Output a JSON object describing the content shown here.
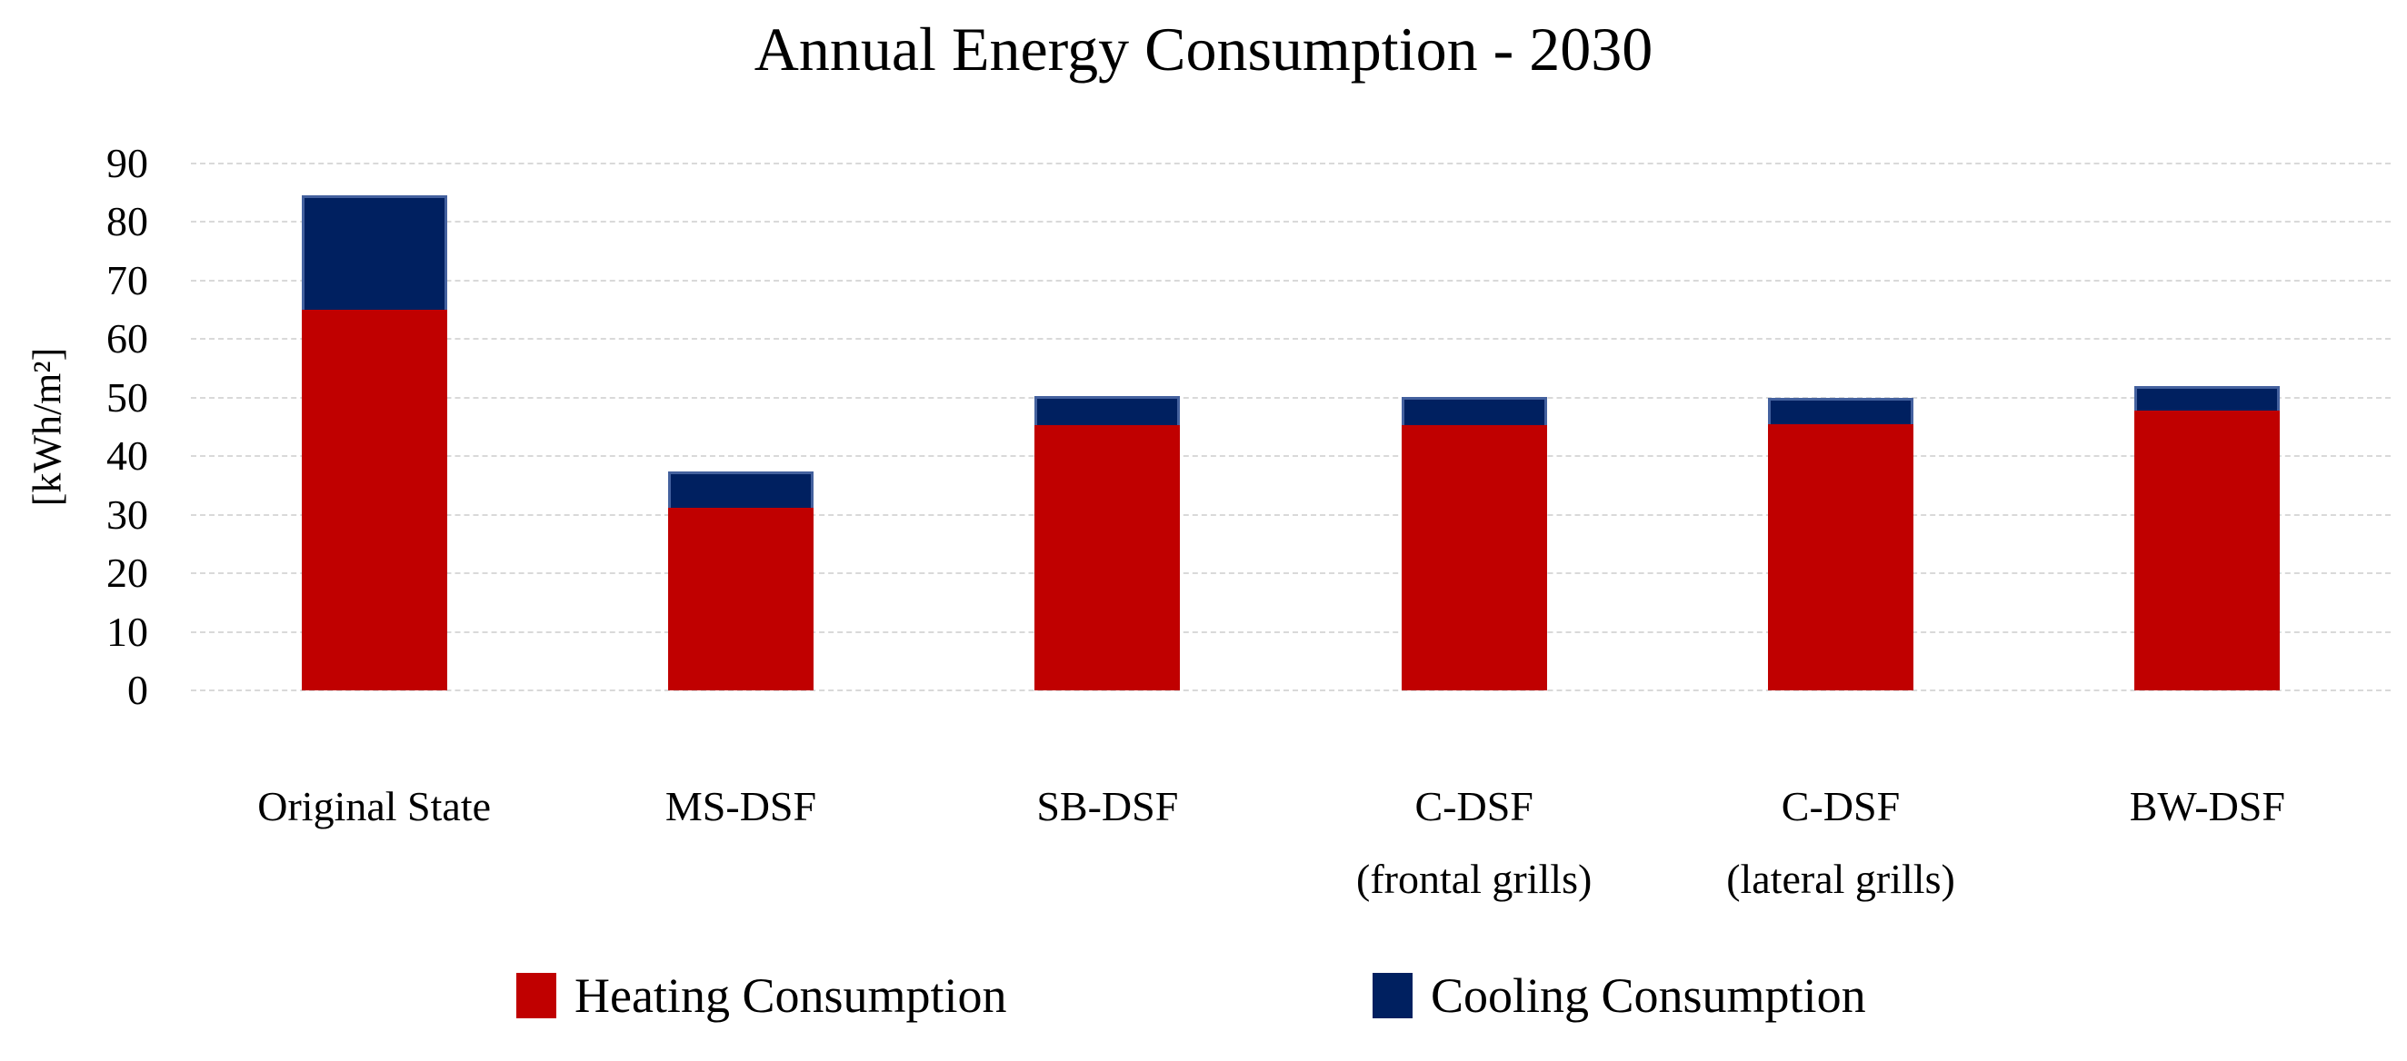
{
  "chart_data": {
    "type": "bar",
    "stacked": true,
    "title": "Annual Energy Consumption - 2030",
    "ylabel": "[kWh/m²]",
    "ylim": [
      0,
      90
    ],
    "ytick_step": 10,
    "grid": true,
    "gridline_color": "#D9D9D9",
    "legend_position": "bottom",
    "categories": [
      "Original State",
      "MS-DSF",
      "SB-DSF",
      "C-DSF\n(frontal grills)",
      "C-DSF\n(lateral grills)",
      "BW-DSF"
    ],
    "series": [
      {
        "name": "Heating Consumption",
        "color": "#C00000",
        "values": [
          65.0,
          31.2,
          45.3,
          45.3,
          45.4,
          47.8
        ]
      },
      {
        "name": "Cooling Consumption",
        "color": "#002060",
        "border_color": "#44619E",
        "values": [
          19.5,
          6.2,
          5.0,
          4.8,
          4.6,
          4.2
        ]
      }
    ]
  }
}
